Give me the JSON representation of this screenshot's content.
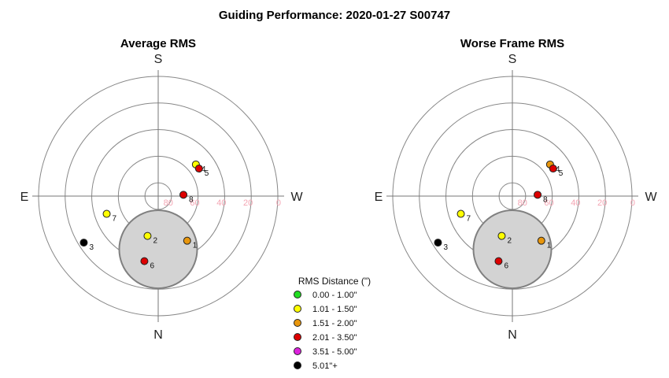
{
  "title": "Guiding Performance: 2020-01-27 S00747",
  "colors": {
    "green": "#22dd22",
    "yellow": "#ffff00",
    "orange": "#e8960c",
    "red": "#dd0000",
    "magenta": "#dd22dd",
    "black": "#000000",
    "ring": "#888888",
    "axis": "#777777",
    "ring_label": "#f4a6b4",
    "obstruction_fill": "#d3d3d3",
    "obstruction_stroke": "#808080"
  },
  "directions": {
    "top": "S",
    "bottom": "N",
    "left": "E",
    "right": "W"
  },
  "legend": {
    "title": "RMS Distance (\")",
    "items": [
      {
        "label": "0.00 - 1.00\"",
        "color": "#22dd22"
      },
      {
        "label": "1.01 - 1.50\"",
        "color": "#ffff00"
      },
      {
        "label": "1.51 - 2.00\"",
        "color": "#e8960c"
      },
      {
        "label": "2.01 - 3.50\"",
        "color": "#dd0000"
      },
      {
        "label": "3.51 - 5.00\"",
        "color": "#dd22dd"
      },
      {
        "label": "5.01\"+",
        "color": "#000000"
      }
    ]
  },
  "chart_data": [
    {
      "type": "scatter",
      "subtype": "polar",
      "title": "Average RMS",
      "r_axis": {
        "ticks": [
          80,
          60,
          40,
          20,
          0
        ],
        "tick_labels": [
          "80",
          "60",
          "40",
          "20",
          "0"
        ]
      },
      "obstruction": {
        "center_altitude": 50,
        "radius_deg": 13.7
      },
      "points": [
        {
          "label": "1",
          "altitude": 50,
          "azimuth": 327,
          "color": "#e8960c"
        },
        {
          "label": "2",
          "altitude": 59,
          "azimuth": 15,
          "color": "#ffff00"
        },
        {
          "label": "3",
          "altitude": 24,
          "azimuth": 58,
          "color": "#000000"
        },
        {
          "label": "4",
          "altitude": 53,
          "azimuth": 230,
          "color": "#ffff00"
        },
        {
          "label": "5",
          "altitude": 53,
          "azimuth": 236,
          "color": "#dd0000"
        },
        {
          "label": "6",
          "altitude": 40,
          "azimuth": 12,
          "color": "#dd0000"
        },
        {
          "label": "7",
          "altitude": 49,
          "azimuth": 71,
          "color": "#ffff00"
        },
        {
          "label": "8",
          "altitude": 71,
          "azimuth": 267,
          "color": "#dd0000"
        }
      ]
    },
    {
      "type": "scatter",
      "subtype": "polar",
      "title": "Worse Frame RMS",
      "r_axis": {
        "ticks": [
          80,
          60,
          40,
          20,
          0
        ],
        "tick_labels": [
          "80",
          "60",
          "40",
          "20",
          "0"
        ]
      },
      "obstruction": {
        "center_altitude": 50,
        "radius_deg": 13.7
      },
      "points": [
        {
          "label": "1",
          "altitude": 50,
          "azimuth": 327,
          "color": "#e8960c"
        },
        {
          "label": "2",
          "altitude": 59,
          "azimuth": 15,
          "color": "#ffff00"
        },
        {
          "label": "3",
          "altitude": 24,
          "azimuth": 58,
          "color": "#000000"
        },
        {
          "label": "4",
          "altitude": 53,
          "azimuth": 230,
          "color": "#e8960c"
        },
        {
          "label": "5",
          "altitude": 53,
          "azimuth": 236,
          "color": "#dd0000"
        },
        {
          "label": "6",
          "altitude": 40,
          "azimuth": 12,
          "color": "#dd0000"
        },
        {
          "label": "7",
          "altitude": 49,
          "azimuth": 71,
          "color": "#ffff00"
        },
        {
          "label": "8",
          "altitude": 71,
          "azimuth": 267,
          "color": "#dd0000"
        }
      ]
    }
  ]
}
